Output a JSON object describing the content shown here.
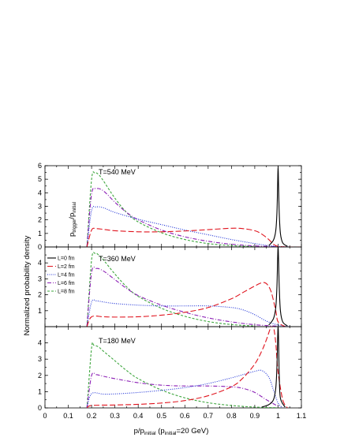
{
  "figure": {
    "y_axis_title": "Normalized probability density",
    "x_axis_title_main": "p/p",
    "x_axis_title_sub": "initial",
    "x_axis_title_tail": " (p",
    "x_axis_title_sub2": "initial",
    "x_axis_title_end": "=20 GeV)",
    "inset_y_label_main_1": "p",
    "inset_y_label_sub_1": "trigger",
    "inset_y_label_main_2": "/p",
    "inset_y_label_sub_2": "initial"
  },
  "chart_data": [
    {
      "type": "line",
      "panel": "top",
      "annotation": "T=540 MeV",
      "xlim": [
        0,
        1.1
      ],
      "ylim": [
        0,
        6
      ],
      "yticks": [
        0,
        1,
        2,
        3,
        4,
        5,
        6
      ],
      "series": [
        {
          "name": "L=0 fm",
          "color": "#000000",
          "dash": "solid",
          "x": [
            0.96,
            0.98,
            0.99,
            0.995,
            0.998,
            1.0,
            1.002,
            1.005,
            1.01,
            1.02,
            1.04
          ],
          "y": [
            0.1,
            0.5,
            1.2,
            2.5,
            4.5,
            6.0,
            4.5,
            2.5,
            1.0,
            0.3,
            0.05
          ]
        },
        {
          "name": "L=2 fm",
          "color": "#e0141e",
          "dash": "long",
          "x": [
            0.18,
            0.2,
            0.22,
            0.25,
            0.3,
            0.4,
            0.5,
            0.6,
            0.7,
            0.8,
            0.85,
            0.9,
            0.93,
            0.96,
            0.98,
            1.0,
            1.05,
            1.1
          ],
          "y": [
            0.0,
            1.25,
            1.35,
            1.3,
            1.2,
            1.12,
            1.12,
            1.18,
            1.28,
            1.38,
            1.35,
            1.2,
            0.95,
            0.55,
            0.2,
            0.05,
            0.0,
            0.0
          ]
        },
        {
          "name": "L=4 fm",
          "color": "#1c2fd6",
          "dash": "dot",
          "x": [
            0.18,
            0.2,
            0.22,
            0.25,
            0.3,
            0.4,
            0.5,
            0.6,
            0.7,
            0.8,
            0.9,
            0.95,
            1.0,
            1.05
          ],
          "y": [
            0.0,
            2.7,
            2.95,
            2.9,
            2.55,
            2.05,
            1.65,
            1.25,
            0.9,
            0.55,
            0.25,
            0.12,
            0.04,
            0.0
          ]
        },
        {
          "name": "L=6 fm",
          "color": "#8b1fb5",
          "dash": "dashdot",
          "x": [
            0.18,
            0.2,
            0.22,
            0.25,
            0.3,
            0.35,
            0.4,
            0.5,
            0.6,
            0.7,
            0.8,
            0.9,
            1.0
          ],
          "y": [
            0.0,
            3.9,
            4.3,
            4.15,
            3.3,
            2.55,
            2.0,
            1.25,
            0.75,
            0.42,
            0.2,
            0.08,
            0.02
          ]
        },
        {
          "name": "L=8 fm",
          "color": "#3ea63e",
          "dash": "dash",
          "x": [
            0.18,
            0.2,
            0.215,
            0.23,
            0.25,
            0.3,
            0.35,
            0.4,
            0.5,
            0.6,
            0.7,
            0.8,
            0.9
          ],
          "y": [
            0.0,
            5.0,
            5.45,
            5.35,
            4.9,
            3.6,
            2.55,
            1.85,
            1.05,
            0.55,
            0.25,
            0.1,
            0.03
          ]
        }
      ]
    },
    {
      "type": "line",
      "panel": "middle",
      "annotation": "T=360 MeV",
      "xlim": [
        0,
        1.1
      ],
      "ylim": [
        0,
        5
      ],
      "yticks": [
        1,
        2,
        3,
        4
      ],
      "series": [
        {
          "name": "L=0 fm",
          "color": "#000000",
          "dash": "solid",
          "x": [
            0.96,
            0.98,
            0.99,
            0.995,
            0.998,
            1.0,
            1.002,
            1.005,
            1.01,
            1.02,
            1.04
          ],
          "y": [
            0.1,
            0.5,
            1.2,
            2.5,
            4.2,
            5.0,
            4.2,
            2.5,
            1.0,
            0.3,
            0.05
          ]
        },
        {
          "name": "L=2 fm",
          "color": "#e0141e",
          "dash": "long",
          "x": [
            0.18,
            0.2,
            0.25,
            0.3,
            0.4,
            0.5,
            0.6,
            0.7,
            0.8,
            0.85,
            0.9,
            0.93,
            0.95,
            0.97,
            0.99,
            1.0,
            1.03
          ],
          "y": [
            0.0,
            0.62,
            0.62,
            0.6,
            0.62,
            0.72,
            0.9,
            1.2,
            1.75,
            2.15,
            2.55,
            2.75,
            2.7,
            2.2,
            1.0,
            0.3,
            0.0
          ]
        },
        {
          "name": "L=4 fm",
          "color": "#1c2fd6",
          "dash": "dot",
          "x": [
            0.18,
            0.2,
            0.22,
            0.25,
            0.3,
            0.4,
            0.5,
            0.6,
            0.7,
            0.8,
            0.85,
            0.9,
            0.95,
            1.0,
            1.05
          ],
          "y": [
            0.0,
            1.55,
            1.62,
            1.55,
            1.45,
            1.35,
            1.3,
            1.3,
            1.3,
            1.2,
            1.05,
            0.75,
            0.35,
            0.1,
            0.0
          ]
        },
        {
          "name": "L=6 fm",
          "color": "#8b1fb5",
          "dash": "dashdot",
          "x": [
            0.18,
            0.2,
            0.22,
            0.25,
            0.3,
            0.35,
            0.4,
            0.5,
            0.6,
            0.7,
            0.8,
            0.9,
            1.0
          ],
          "y": [
            0.0,
            3.4,
            3.65,
            3.5,
            2.95,
            2.4,
            1.95,
            1.35,
            0.9,
            0.55,
            0.3,
            0.12,
            0.03
          ]
        },
        {
          "name": "L=8 fm",
          "color": "#3ea63e",
          "dash": "dash",
          "x": [
            0.18,
            0.2,
            0.215,
            0.23,
            0.25,
            0.3,
            0.35,
            0.4,
            0.5,
            0.6,
            0.7,
            0.8,
            0.9
          ],
          "y": [
            0.0,
            4.2,
            4.6,
            4.5,
            4.2,
            3.3,
            2.5,
            1.9,
            1.15,
            0.65,
            0.32,
            0.13,
            0.04
          ]
        }
      ]
    },
    {
      "type": "line",
      "panel": "bottom",
      "annotation": "T=180 MeV",
      "xlim": [
        0,
        1.1
      ],
      "ylim": [
        0,
        5
      ],
      "yticks": [
        0,
        1,
        2,
        3,
        4
      ],
      "series": [
        {
          "name": "L=0 fm",
          "color": "#000000",
          "dash": "solid",
          "x": [
            0.93,
            0.96,
            0.98,
            0.99,
            0.995,
            0.998,
            1.0,
            1.002,
            1.005,
            1.01,
            1.03
          ],
          "y": [
            0.05,
            0.2,
            0.5,
            1.2,
            2.5,
            4.2,
            5.0,
            4.2,
            2.0,
            0.6,
            0.05
          ]
        },
        {
          "name": "L=2 fm",
          "color": "#e0141e",
          "dash": "long",
          "x": [
            0.18,
            0.2,
            0.3,
            0.4,
            0.5,
            0.6,
            0.7,
            0.8,
            0.85,
            0.9,
            0.93,
            0.95,
            0.97,
            0.98,
            0.99,
            1.0,
            1.02,
            1.04
          ],
          "y": [
            0.0,
            0.15,
            0.18,
            0.22,
            0.3,
            0.45,
            0.75,
            1.3,
            1.85,
            2.7,
            3.5,
            4.2,
            5.0,
            5.0,
            4.0,
            2.2,
            0.5,
            0.0
          ]
        },
        {
          "name": "L=4 fm",
          "color": "#1c2fd6",
          "dash": "dot",
          "x": [
            0.18,
            0.2,
            0.25,
            0.3,
            0.4,
            0.5,
            0.6,
            0.7,
            0.8,
            0.85,
            0.9,
            0.93,
            0.96,
            0.98,
            1.0,
            1.02
          ],
          "y": [
            0.0,
            0.88,
            0.85,
            0.86,
            0.95,
            1.08,
            1.25,
            1.5,
            1.85,
            2.05,
            2.25,
            2.3,
            1.9,
            1.1,
            0.3,
            0.0
          ]
        },
        {
          "name": "L=6 fm",
          "color": "#8b1fb5",
          "dash": "dashdot",
          "x": [
            0.18,
            0.2,
            0.22,
            0.25,
            0.3,
            0.4,
            0.5,
            0.6,
            0.7,
            0.8,
            0.85,
            0.9,
            0.95,
            1.0
          ],
          "y": [
            0.0,
            2.0,
            2.05,
            1.95,
            1.8,
            1.55,
            1.4,
            1.35,
            1.35,
            1.3,
            1.2,
            0.95,
            0.5,
            0.1
          ]
        },
        {
          "name": "L=8 fm",
          "color": "#3ea63e",
          "dash": "dash",
          "x": [
            0.18,
            0.2,
            0.21,
            0.23,
            0.25,
            0.3,
            0.35,
            0.4,
            0.5,
            0.6,
            0.7,
            0.8,
            0.9,
            1.0
          ],
          "y": [
            0.0,
            3.7,
            3.85,
            3.75,
            3.5,
            2.9,
            2.3,
            1.8,
            1.1,
            0.62,
            0.32,
            0.15,
            0.05,
            0.01
          ]
        }
      ]
    }
  ],
  "legend": [
    {
      "label": "L=0 fm",
      "color": "#000000",
      "dash": "solid"
    },
    {
      "label": "L=2 fm",
      "color": "#e0141e",
      "dash": "long"
    },
    {
      "label": "L=4 fm",
      "color": "#1c2fd6",
      "dash": "dot"
    },
    {
      "label": "L=6 fm",
      "color": "#8b1fb5",
      "dash": "dashdot"
    },
    {
      "label": "L=8 fm",
      "color": "#3ea63e",
      "dash": "dash"
    }
  ],
  "x_ticks": [
    "0",
    "0.1",
    "0.2",
    "0.3",
    "0.4",
    "0.5",
    "0.6",
    "0.7",
    "0.8",
    "0.9",
    "1",
    "1.1"
  ]
}
